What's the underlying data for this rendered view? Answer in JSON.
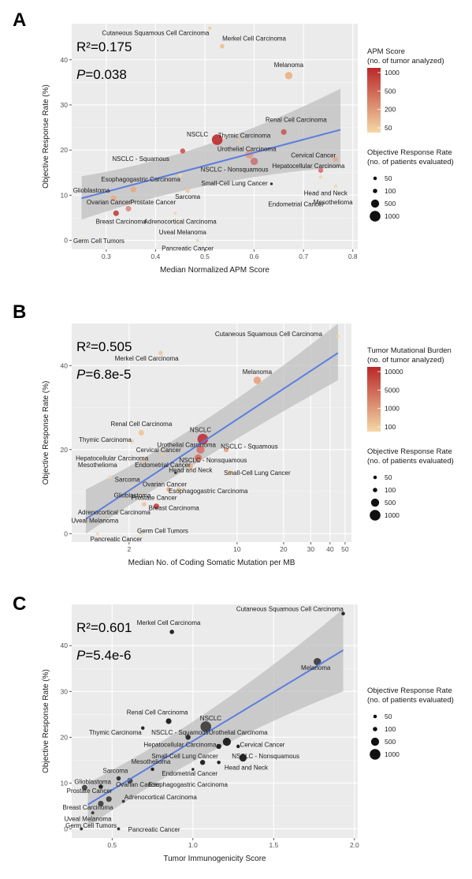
{
  "chart_data": [
    {
      "type": "scatter",
      "panel_label": "A",
      "stat_r2": "R²=0.175",
      "stat_p_letter": "P",
      "stat_p_value": "=0.038",
      "xlabel": "Median Normalized APM Score",
      "ylabel": "Objective Response Rate (%)",
      "xlim": [
        0.23,
        0.81
      ],
      "ylim": [
        -2,
        48
      ],
      "xscale": "linear",
      "xticks": [
        0.3,
        0.4,
        0.5,
        0.6,
        0.7,
        0.8
      ],
      "xtick_labels": [
        "0.3",
        "0.4",
        "0.5",
        "0.6",
        "0.7",
        "0.8"
      ],
      "yticks": [
        0,
        10,
        20,
        30,
        40
      ],
      "ytick_labels": [
        "0",
        "10",
        "20",
        "30",
        "40"
      ],
      "grid": true,
      "fit": {
        "x": [
          0.25,
          0.775
        ],
        "y": [
          9.3,
          24.5
        ],
        "ci_lower": [
          4.6,
          16.2
        ],
        "ci_upper": [
          14.2,
          33.6
        ],
        "ci_mid": 0.5,
        "ci_mid_lower": 14.0,
        "ci_mid_upper": 18.6
      },
      "color_legend": {
        "title1": "APM Score",
        "title2": "(no. of tumor analyzed)",
        "ticks": [
          "1000",
          "500",
          "200",
          "50"
        ],
        "colors": [
          "#f3d8a6",
          "#ba2828"
        ]
      },
      "size_legend": {
        "title1": "Objective Response Rate",
        "title2": "(no. of patients evaluated)",
        "labels": [
          "50",
          "100",
          "500",
          "1000"
        ],
        "values": [
          50,
          100,
          500,
          1000
        ]
      },
      "points": [
        {
          "name": "Cutaneous Squamous Cell Carcinoma",
          "x": 0.51,
          "y": 47,
          "color": "#f0cf9a",
          "size": 50,
          "lx": 0.4,
          "ly": 45.5
        },
        {
          "name": "Merkel Cell Carcinoma",
          "x": 0.535,
          "y": 43,
          "color": "#f0c089",
          "size": 100,
          "lx": 0.6,
          "ly": 44.2
        },
        {
          "name": "Melanoma",
          "x": 0.67,
          "y": 36.5,
          "color": "#ecb080",
          "size": 400,
          "lx": 0.67,
          "ly": 38.4
        },
        {
          "name": "Renal Cell Carcinoma",
          "x": 0.66,
          "y": 24,
          "color": "#c85a55",
          "size": 200,
          "lx": 0.685,
          "ly": 26.2
        },
        {
          "name": "NSCLC",
          "x": 0.525,
          "y": 22.3,
          "color": "#bd2b2b",
          "size": 1000,
          "lx": 0.485,
          "ly": 23.0
        },
        {
          "name": "Thymic Carcinoma",
          "x": 0.57,
          "y": 22.0,
          "color": "#f0c89a",
          "size": 50,
          "lx": 0.58,
          "ly": 22.7
        },
        {
          "name": "Urothelial Carcinoma",
          "x": 0.59,
          "y": 19,
          "color": "#e29a82",
          "size": 500,
          "lx": 0.585,
          "ly": 19.8
        },
        {
          "name": "NSCLC - Squamous",
          "x": 0.455,
          "y": 19.8,
          "color": "#cf5050",
          "size": 150,
          "lx": 0.37,
          "ly": 17.6
        },
        {
          "name": "Cervical Cancer",
          "x": 0.765,
          "y": 18,
          "color": "#e9a88a",
          "size": 150,
          "lx": 0.72,
          "ly": 18.4
        },
        {
          "name": "Hepatocellular Carcinoma",
          "x": 0.735,
          "y": 15.5,
          "color": "#d97070",
          "size": 150,
          "lx": 0.71,
          "ly": 16.0
        },
        {
          "name": "NSCLC - Nonsquamous",
          "x": 0.6,
          "y": 17.5,
          "color": "#c97474",
          "size": 400,
          "lx": 0.56,
          "ly": 15.2
        },
        {
          "name": "Small-Cell Lung Cancer",
          "x": 0.45,
          "y": 14.5,
          "color": "#f0d4a6",
          "size": 100,
          "lx": 0.56,
          "ly": 12.2
        },
        {
          "name": "Esophagogastric Carcinoma",
          "x": 0.355,
          "y": 11.3,
          "color": "#e7a882",
          "size": 200,
          "lx": 0.37,
          "ly": 13.0
        },
        {
          "name": "Glioblastoma",
          "x": 0.275,
          "y": 10.0,
          "color": "#f0d8b0",
          "size": 50,
          "lx": 0.27,
          "ly": 10.6
        },
        {
          "name": "Head and Neck",
          "x": 0.735,
          "y": 14.0,
          "color": "#f0d5aa",
          "size": 50,
          "lx": 0.745,
          "ly": 10.0
        },
        {
          "name": "Mesothelioma",
          "x": 0.765,
          "y": 12.0,
          "color": "#f0d8b0",
          "size": 50,
          "lx": 0.76,
          "ly": 8.0
        },
        {
          "name": "Endometrial Cancer",
          "x": 0.635,
          "y": 12.5,
          "color": "#2a2a2a",
          "size": 20,
          "lx": 0.685,
          "ly": 7.5
        },
        {
          "name": "Sarcoma",
          "x": 0.465,
          "y": 11.0,
          "color": "#f0c89c",
          "size": 100,
          "lx": 0.465,
          "ly": 9.2
        },
        {
          "name": "Ovarian Cancer",
          "x": 0.315,
          "y": 9.3,
          "color": "#e9aa88",
          "size": 200,
          "lx": 0.305,
          "ly": 8.0
        },
        {
          "name": "Prostate Cancer",
          "x": 0.345,
          "y": 7.0,
          "color": "#dd8a7e",
          "size": 200,
          "lx": 0.395,
          "ly": 8.0
        },
        {
          "name": "Breast Carcinoma",
          "x": 0.32,
          "y": 6.0,
          "color": "#c04040",
          "size": 200,
          "lx": 0.33,
          "ly": 3.7
        },
        {
          "name": "Adrenocortical Carcinoma",
          "x": 0.44,
          "y": 6.0,
          "color": "#f0d6ac",
          "size": 30,
          "lx": 0.45,
          "ly": 3.7
        },
        {
          "name": "Uveal Melanoma",
          "x": 0.445,
          "y": 3.8,
          "color": "#f0d5aa",
          "size": 30,
          "lx": 0.455,
          "ly": 1.3
        },
        {
          "name": "Germ Cell Tumors",
          "x": 0.25,
          "y": 0.0,
          "color": "#f0d6ac",
          "size": 30,
          "lx": 0.285,
          "ly": -0.6
        },
        {
          "name": "Pancreatic Cancer",
          "x": 0.485,
          "y": 0.0,
          "color": "#f0d6ac",
          "size": 30,
          "lx": 0.465,
          "ly": -2.3
        }
      ]
    },
    {
      "type": "scatter",
      "panel_label": "B",
      "stat_r2": "R²=0.505",
      "stat_p_letter": "P",
      "stat_p_value": "=6.8e-5",
      "xlabel": "Median No. of Coding Somatic Mutation per MB",
      "ylabel": "Objective Response Rate (%)",
      "xlim": [
        0.85,
        55
      ],
      "ylim": [
        -2,
        50
      ],
      "xscale": "log",
      "xticks": [
        2,
        10,
        20,
        30,
        40,
        50
      ],
      "xtick_labels": [
        "2",
        "10",
        "20",
        "30",
        "40",
        "50"
      ],
      "yticks": [
        0,
        20,
        40
      ],
      "ytick_labels": [
        "0",
        "20",
        "40"
      ],
      "grid": true,
      "fit": {
        "x": [
          1.05,
          45
        ],
        "y": [
          3.5,
          43.0
        ],
        "ci_lower": [
          0.0,
          36.5
        ],
        "ci_upper": [
          10.5,
          50.0
        ],
        "ci_mid": 6.0,
        "ci_mid_lower": 18.5,
        "ci_mid_upper": 24.5
      },
      "color_legend": {
        "title1": "Tumor Mutational Burden",
        "title2": "(no. of tumor analyzed)",
        "ticks": [
          "10000",
          "5000",
          "1000",
          "100"
        ],
        "colors": [
          "#f3d8a6",
          "#ba2828"
        ]
      },
      "size_legend": {
        "title1": "Objective Response Rate",
        "title2": "(no. of patients evaluated)",
        "labels": [
          "50",
          "100",
          "500",
          "1000"
        ],
        "values": [
          50,
          100,
          500,
          1000
        ]
      },
      "points": [
        {
          "name": "Cutaneous Squamous Cell Carcinoma",
          "x": 45,
          "y": 47,
          "color": "#f0d4a8",
          "size": 50,
          "lx": 16,
          "ly": 47.0
        },
        {
          "name": "Merkel Cell Carcinoma",
          "x": 3.2,
          "y": 43,
          "color": "#f0c89a",
          "size": 100,
          "lx": 2.6,
          "ly": 41.2
        },
        {
          "name": "Melanoma",
          "x": 13.5,
          "y": 36.5,
          "color": "#e9a07e",
          "size": 400,
          "lx": 13.5,
          "ly": 38.0
        },
        {
          "name": "Renal Cell Carcinoma",
          "x": 2.4,
          "y": 24,
          "color": "#eec49a",
          "size": 200,
          "lx": 2.4,
          "ly": 25.6
        },
        {
          "name": "NSCLC",
          "x": 6.0,
          "y": 22.5,
          "color": "#c0303a",
          "size": 1000,
          "lx": 5.8,
          "ly": 24.2
        },
        {
          "name": "Thymic Carcinoma",
          "x": 2.1,
          "y": 22.0,
          "color": "#f0d0a0",
          "size": 50,
          "lx": 1.4,
          "ly": 21.8
        },
        {
          "name": "Urothelial Carcinoma",
          "x": 5.8,
          "y": 20.0,
          "color": "#d8706a",
          "size": 500,
          "lx": 4.7,
          "ly": 20.6
        },
        {
          "name": "NSCLC - Squamous",
          "x": 8.5,
          "y": 20.0,
          "color": "#e7a07e",
          "size": 150,
          "lx": 12.0,
          "ly": 20.2
        },
        {
          "name": "Cervical Cancer",
          "x": 3.3,
          "y": 19.0,
          "color": "#f0c89a",
          "size": 50,
          "lx": 3.1,
          "ly": 19.4
        },
        {
          "name": "Hepatocellular Carcinoma",
          "x": 2.5,
          "y": 17.5,
          "color": "#f0c89a",
          "size": 100,
          "lx": 1.55,
          "ly": 17.4
        },
        {
          "name": "NSCLC - Nonsquamous",
          "x": 5.6,
          "y": 18.0,
          "color": "#cf7060",
          "size": 400,
          "lx": 7.0,
          "ly": 17.0
        },
        {
          "name": "Head and Neck",
          "x": 5.0,
          "y": 16.0,
          "color": "#e9b088",
          "size": 150,
          "lx": 5.0,
          "ly": 14.6
        },
        {
          "name": "Endometrial Cancer",
          "x": 4.0,
          "y": 14.5,
          "color": "#2a2a2a",
          "size": 20,
          "lx": 3.3,
          "ly": 15.8
        },
        {
          "name": "Small-Cell Lung Cancer",
          "x": 9.0,
          "y": 14.5,
          "color": "#f0d0a4",
          "size": 150,
          "lx": 13.5,
          "ly": 14.0
        },
        {
          "name": "Mesothelioma",
          "x": 1.5,
          "y": 13.5,
          "color": "#f0d8b0",
          "size": 50,
          "lx": 1.25,
          "ly": 15.8
        },
        {
          "name": "Sarcoma",
          "x": 2.1,
          "y": 11.0,
          "color": "#f0c89c",
          "size": 100,
          "lx": 1.95,
          "ly": 12.4
        },
        {
          "name": "Ovarian Cancer",
          "x": 3.6,
          "y": 10.5,
          "color": "#eaaa8a",
          "size": 100,
          "lx": 3.4,
          "ly": 11.2
        },
        {
          "name": "Esophagogastric Carcinoma",
          "x": 4.2,
          "y": 10.5,
          "color": "#f0c090",
          "size": 100,
          "lx": 6.5,
          "ly": 9.6
        },
        {
          "name": "Glioblastoma",
          "x": 2.4,
          "y": 9.0,
          "color": "#f0d8b0",
          "size": 50,
          "lx": 2.1,
          "ly": 8.6
        },
        {
          "name": "Prostate Cancer",
          "x": 2.5,
          "y": 7.0,
          "color": "#eec0a0",
          "size": 100,
          "lx": 2.9,
          "ly": 8.0
        },
        {
          "name": "Breast Carcinoma",
          "x": 3.0,
          "y": 6.5,
          "color": "#c84040",
          "size": 200,
          "lx": 3.9,
          "ly": 5.6
        },
        {
          "name": "Adrenocortical Carcinoma",
          "x": 1.4,
          "y": 5.0,
          "color": "#f0d8b0",
          "size": 30,
          "lx": 1.6,
          "ly": 4.6
        },
        {
          "name": "Uveal Melanoma",
          "x": 1.05,
          "y": 3.5,
          "color": "#f0d8b0",
          "size": 30,
          "lx": 1.2,
          "ly": 2.6
        },
        {
          "name": "Germ Cell Tumors",
          "x": 2.4,
          "y": 0.0,
          "color": "#f0d8b0",
          "size": 30,
          "lx": 3.3,
          "ly": 0.2
        },
        {
          "name": "Pancreatic Cancer",
          "x": 1.25,
          "y": 0.0,
          "color": "#f0d8b0",
          "size": 30,
          "lx": 1.65,
          "ly": -1.8
        }
      ]
    },
    {
      "type": "scatter",
      "panel_label": "C",
      "stat_r2": "R²=0.601",
      "stat_p_letter": "P",
      "stat_p_value": "=5.4e-6",
      "xlabel": "Tumor Immunogenicity Score",
      "ylabel": "Objective Response Rate (%)",
      "xlim": [
        0.25,
        2.02
      ],
      "ylim": [
        -2,
        49
      ],
      "xscale": "linear",
      "xticks": [
        0.5,
        1.0,
        1.5,
        2.0
      ],
      "xtick_labels": [
        "0.5",
        "1.0",
        "1.5",
        "2.0"
      ],
      "yticks": [
        0,
        10,
        20,
        30,
        40
      ],
      "ytick_labels": [
        "0",
        "10",
        "20",
        "30",
        "40"
      ],
      "grid": true,
      "fit": {
        "x": [
          0.35,
          1.93
        ],
        "y": [
          5.3,
          39.0
        ],
        "ci_lower": [
          0.5,
          30.0
        ],
        "ci_upper": [
          10.0,
          48.0
        ],
        "ci_mid": 1.1,
        "ci_mid_lower": 18.7,
        "ci_mid_upper": 23.5
      },
      "color_legend": null,
      "size_legend": {
        "title1": "Objective Response Rate",
        "title2": "(no. of patients evaluated)",
        "labels": [
          "50",
          "100",
          "500",
          "1000"
        ],
        "values": [
          50,
          100,
          500,
          1000
        ]
      },
      "points": [
        {
          "name": "Cutaneous Squamous Cell Carcinoma",
          "x": 1.93,
          "y": 47,
          "color": "#111111",
          "size": 50,
          "lx": 1.6,
          "ly": 47.5
        },
        {
          "name": "Merkel Cell Carcinoma",
          "x": 0.87,
          "y": 43,
          "color": "#111111",
          "size": 100,
          "lx": 0.85,
          "ly": 44.5
        },
        {
          "name": "Melanoma",
          "x": 1.77,
          "y": 36.5,
          "color": "#3a3a3a",
          "size": 400,
          "lx": 1.76,
          "ly": 34.7
        },
        {
          "name": "Renal Cell Carcinoma",
          "x": 0.85,
          "y": 23.5,
          "color": "#111111",
          "size": 200,
          "lx": 0.78,
          "ly": 25.0
        },
        {
          "name": "NSCLC",
          "x": 1.08,
          "y": 22.3,
          "color": "#3a3a3a",
          "size": 1000,
          "lx": 1.11,
          "ly": 23.7
        },
        {
          "name": "Thymic Carcinoma",
          "x": 0.69,
          "y": 22.0,
          "color": "#111111",
          "size": 50,
          "lx": 0.52,
          "ly": 20.6
        },
        {
          "name": "NSCLC - Squamous",
          "x": 0.97,
          "y": 20.0,
          "color": "#1a1a1a",
          "size": 150,
          "lx": 0.92,
          "ly": 20.6
        },
        {
          "name": "Urothelial Carcinoma",
          "x": 1.21,
          "y": 19.0,
          "color": "#111111",
          "size": 500,
          "lx": 1.28,
          "ly": 20.6
        },
        {
          "name": "Hepatocellular Carcinoma",
          "x": 1.16,
          "y": 18.0,
          "color": "#111111",
          "size": 150,
          "lx": 0.92,
          "ly": 17.9
        },
        {
          "name": "Cervical Cancer",
          "x": 1.28,
          "y": 18.0,
          "color": "#111111",
          "size": 50,
          "lx": 1.43,
          "ly": 17.9
        },
        {
          "name": "Small-Cell Lung Cancer",
          "x": 1.06,
          "y": 14.5,
          "color": "#111111",
          "size": 150,
          "lx": 0.95,
          "ly": 15.4
        },
        {
          "name": "NSCLC - Nonsquamous",
          "x": 1.31,
          "y": 15.5,
          "color": "#111111",
          "size": 400,
          "lx": 1.45,
          "ly": 15.4
        },
        {
          "name": "Head and Neck",
          "x": 1.16,
          "y": 14.5,
          "color": "#111111",
          "size": 50,
          "lx": 1.33,
          "ly": 12.9
        },
        {
          "name": "Mesothelioma",
          "x": 0.75,
          "y": 13.0,
          "color": "#111111",
          "size": 50,
          "lx": 0.74,
          "ly": 14.2
        },
        {
          "name": "Endometrial Cancer",
          "x": 1.0,
          "y": 13.0,
          "color": "#111111",
          "size": 20,
          "lx": 0.98,
          "ly": 11.6
        },
        {
          "name": "Sarcoma",
          "x": 0.54,
          "y": 11.0,
          "color": "#2a2a2a",
          "size": 100,
          "lx": 0.52,
          "ly": 12.2
        },
        {
          "name": "Glioblastoma",
          "x": 0.33,
          "y": 9.0,
          "color": "#3a3a3a",
          "size": 200,
          "lx": 0.38,
          "ly": 9.8
        },
        {
          "name": "Ovarian Cancer",
          "x": 0.61,
          "y": 10.5,
          "color": "#3a3a3a",
          "size": 200,
          "lx": 0.66,
          "ly": 9.2
        },
        {
          "name": "Esophagogastric Carcinoma",
          "x": 0.43,
          "y": 9.2,
          "color": "#111111",
          "size": 100,
          "lx": 0.97,
          "ly": 9.2
        },
        {
          "name": "Prostate Cancer",
          "x": 0.48,
          "y": 6.5,
          "color": "#3a3a3a",
          "size": 200,
          "lx": 0.36,
          "ly": 7.8
        },
        {
          "name": "Adrenocortical Carcinoma",
          "x": 0.57,
          "y": 6.0,
          "color": "#2a2a2a",
          "size": 30,
          "lx": 0.8,
          "ly": 6.4
        },
        {
          "name": "Breast Carcinoma",
          "x": 0.43,
          "y": 5.5,
          "color": "#3a3a3a",
          "size": 200,
          "lx": 0.35,
          "ly": 4.2
        },
        {
          "name": "Uveal Melanoma",
          "x": 0.38,
          "y": 3.5,
          "color": "#2a2a2a",
          "size": 30,
          "lx": 0.35,
          "ly": 1.7
        },
        {
          "name": "Germ Cell Tumors",
          "x": 0.31,
          "y": 0.0,
          "color": "#2a2a2a",
          "size": 30,
          "lx": 0.37,
          "ly": 0.2
        },
        {
          "name": "Pancreatic Cancer",
          "x": 0.54,
          "y": 0.0,
          "color": "#2a2a2a",
          "size": 30,
          "lx": 0.76,
          "ly": -0.6
        }
      ]
    }
  ]
}
